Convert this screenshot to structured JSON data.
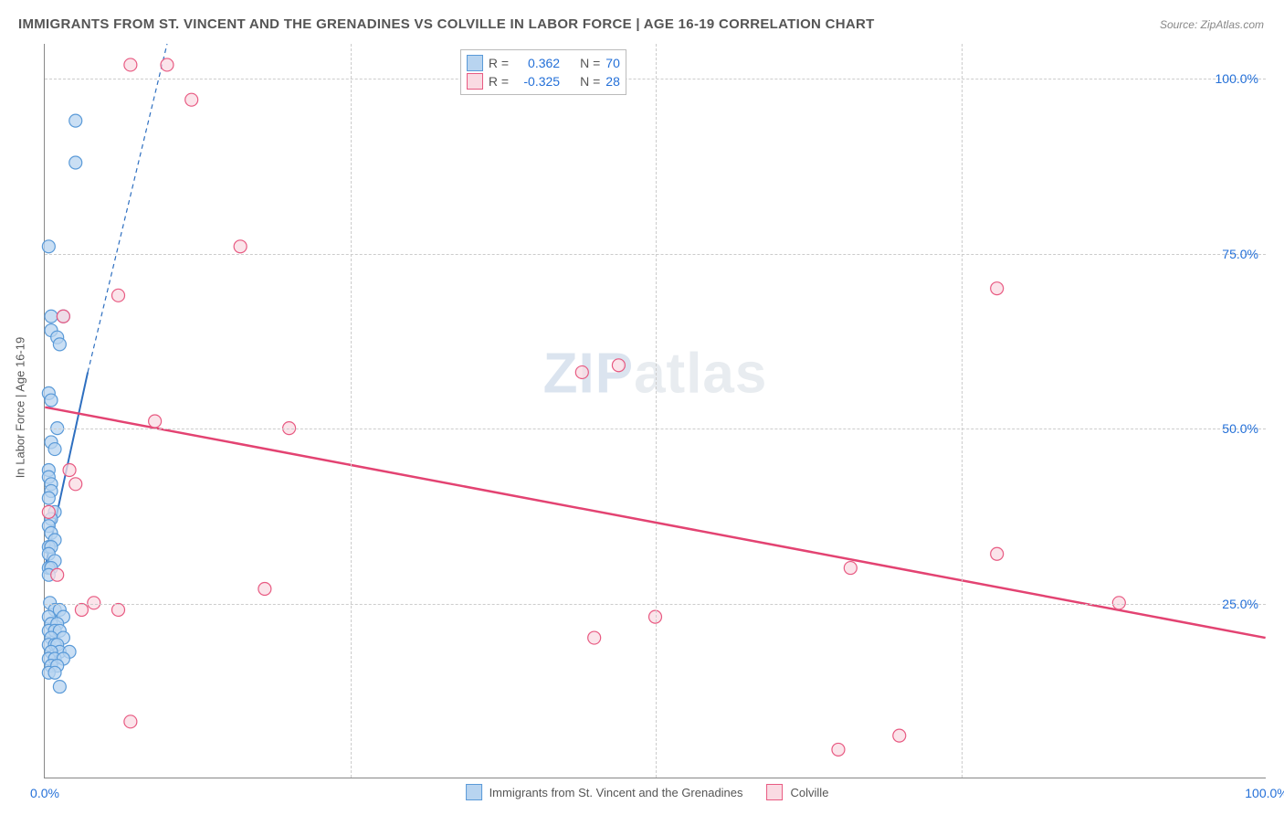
{
  "title": "IMMIGRANTS FROM ST. VINCENT AND THE GRENADINES VS COLVILLE IN LABOR FORCE | AGE 16-19 CORRELATION CHART",
  "source": "Source: ZipAtlas.com",
  "watermark": "ZIPatlas",
  "chart": {
    "type": "scatter",
    "y_axis_title": "In Labor Force | Age 16-19",
    "xlim": [
      0,
      100
    ],
    "ylim": [
      0,
      105
    ],
    "yticks": [
      {
        "v": 25,
        "label": "25.0%"
      },
      {
        "v": 50,
        "label": "50.0%"
      },
      {
        "v": 75,
        "label": "75.0%"
      },
      {
        "v": 100,
        "label": "100.0%"
      }
    ],
    "xticks": [
      {
        "v": 0,
        "label": "0.0%"
      },
      {
        "v": 25,
        "label": ""
      },
      {
        "v": 50,
        "label": ""
      },
      {
        "v": 75,
        "label": ""
      },
      {
        "v": 100,
        "label": "100.0%"
      }
    ],
    "grid_color": "#cccccc",
    "background_color": "#ffffff",
    "series": [
      {
        "name": "Immigrants from St. Vincent and the Grenadines",
        "color_fill": "#b8d4f0",
        "color_stroke": "#5a9ad8",
        "marker_radius": 7,
        "R": "0.362",
        "N": "70",
        "trend": {
          "x1": 0,
          "y1": 30,
          "x2": 3.5,
          "y2": 58,
          "dash_ext_x2": 10,
          "dash_ext_y2": 105,
          "color": "#2e6fc0",
          "width": 2
        },
        "points": [
          [
            2.5,
            94
          ],
          [
            2.5,
            88
          ],
          [
            0.3,
            76
          ],
          [
            0.5,
            66
          ],
          [
            1.5,
            66
          ],
          [
            0.5,
            64
          ],
          [
            1,
            63
          ],
          [
            1.2,
            62
          ],
          [
            0.3,
            55
          ],
          [
            0.5,
            54
          ],
          [
            1,
            50
          ],
          [
            0.5,
            48
          ],
          [
            0.8,
            47
          ],
          [
            0.3,
            44
          ],
          [
            0.3,
            43
          ],
          [
            0.5,
            42
          ],
          [
            0.5,
            41
          ],
          [
            0.3,
            40
          ],
          [
            0.8,
            38
          ],
          [
            0.5,
            37
          ],
          [
            0.3,
            36
          ],
          [
            0.5,
            35
          ],
          [
            0.8,
            34
          ],
          [
            0.3,
            33
          ],
          [
            0.5,
            33
          ],
          [
            0.3,
            32
          ],
          [
            0.8,
            31
          ],
          [
            0.3,
            30
          ],
          [
            0.5,
            30
          ],
          [
            0.3,
            29
          ],
          [
            0.4,
            25
          ],
          [
            0.8,
            24
          ],
          [
            1.2,
            24
          ],
          [
            0.3,
            23
          ],
          [
            1.5,
            23
          ],
          [
            0.5,
            22
          ],
          [
            1,
            22
          ],
          [
            0.3,
            21
          ],
          [
            0.8,
            21
          ],
          [
            1.2,
            21
          ],
          [
            0.5,
            20
          ],
          [
            1.5,
            20
          ],
          [
            0.3,
            19
          ],
          [
            0.8,
            19
          ],
          [
            1,
            19
          ],
          [
            1.2,
            18
          ],
          [
            0.5,
            18
          ],
          [
            2,
            18
          ],
          [
            0.3,
            17
          ],
          [
            0.8,
            17
          ],
          [
            1.5,
            17
          ],
          [
            0.5,
            16
          ],
          [
            1,
            16
          ],
          [
            0.3,
            15
          ],
          [
            0.8,
            15
          ],
          [
            1.2,
            13
          ]
        ]
      },
      {
        "name": "Colville",
        "color_fill": "#fadbe3",
        "color_stroke": "#e85a82",
        "marker_radius": 7,
        "R": "-0.325",
        "N": "28",
        "trend": {
          "x1": 0,
          "y1": 53,
          "x2": 100,
          "y2": 20,
          "color": "#e34372",
          "width": 2.5
        },
        "points": [
          [
            7,
            102
          ],
          [
            10,
            102
          ],
          [
            12,
            97
          ],
          [
            1.5,
            66
          ],
          [
            16,
            76
          ],
          [
            6,
            69
          ],
          [
            78,
            70
          ],
          [
            44,
            58
          ],
          [
            47,
            59
          ],
          [
            9,
            51
          ],
          [
            20,
            50
          ],
          [
            2,
            44
          ],
          [
            2.5,
            42
          ],
          [
            0.3,
            38
          ],
          [
            66,
            30
          ],
          [
            78,
            32
          ],
          [
            18,
            27
          ],
          [
            88,
            25
          ],
          [
            3,
            24
          ],
          [
            4,
            25
          ],
          [
            6,
            24
          ],
          [
            45,
            20
          ],
          [
            50,
            23
          ],
          [
            7,
            8
          ],
          [
            65,
            4
          ],
          [
            70,
            6
          ],
          [
            1,
            29
          ]
        ]
      }
    ],
    "legend_top": {
      "rows": [
        {
          "swatch_fill": "#b8d4f0",
          "swatch_stroke": "#5a9ad8",
          "r_label": "R =",
          "r_val": "0.362",
          "n_label": "N =",
          "n_val": "70"
        },
        {
          "swatch_fill": "#fadbe3",
          "swatch_stroke": "#e85a82",
          "r_label": "R =",
          "r_val": "-0.325",
          "n_label": "N =",
          "n_val": "28"
        }
      ]
    },
    "legend_bottom": [
      {
        "swatch_fill": "#b8d4f0",
        "swatch_stroke": "#5a9ad8",
        "label": "Immigrants from St. Vincent and the Grenadines"
      },
      {
        "swatch_fill": "#fadbe3",
        "swatch_stroke": "#e85a82",
        "label": "Colville"
      }
    ]
  }
}
